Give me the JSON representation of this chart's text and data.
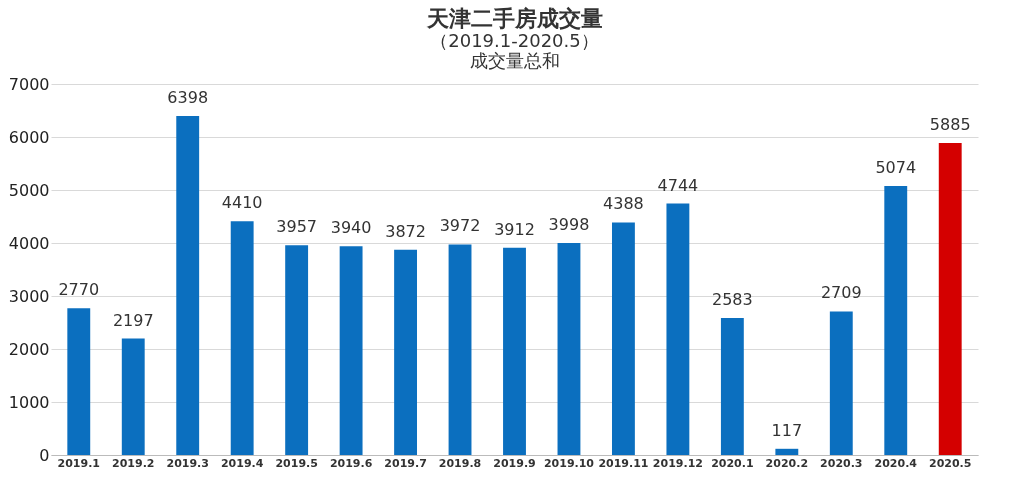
{
  "chart_data": {
    "type": "bar",
    "title": "天津二手房成交量",
    "subtitle": [
      "（2019.1-2020.5）",
      "成交量总和"
    ],
    "categories": [
      "2019.1",
      "2019.2",
      "2019.3",
      "2019.4",
      "2019.5",
      "2019.6",
      "2019.7",
      "2019.8",
      "2019.9",
      "2019.10",
      "2019.11",
      "2019.12",
      "2020.1",
      "2020.2",
      "2020.3",
      "2020.4",
      "2020.5"
    ],
    "values": [
      2770,
      2197,
      6398,
      4410,
      3957,
      3940,
      3872,
      3972,
      3912,
      3998,
      4388,
      4744,
      2583,
      117,
      2709,
      5074,
      5885
    ],
    "colors": [
      "#0b6fbf",
      "#0b6fbf",
      "#0b6fbf",
      "#0b6fbf",
      "#0b6fbf",
      "#0b6fbf",
      "#0b6fbf",
      "#0b6fbf",
      "#0b6fbf",
      "#0b6fbf",
      "#0b6fbf",
      "#0b6fbf",
      "#0b6fbf",
      "#0b6fbf",
      "#0b6fbf",
      "#0b6fbf",
      "#d40000"
    ],
    "ylim": [
      0,
      7000
    ],
    "yticks": [
      0,
      1000,
      2000,
      3000,
      4000,
      5000,
      6000,
      7000
    ],
    "grid": "y",
    "data_labels": true
  }
}
